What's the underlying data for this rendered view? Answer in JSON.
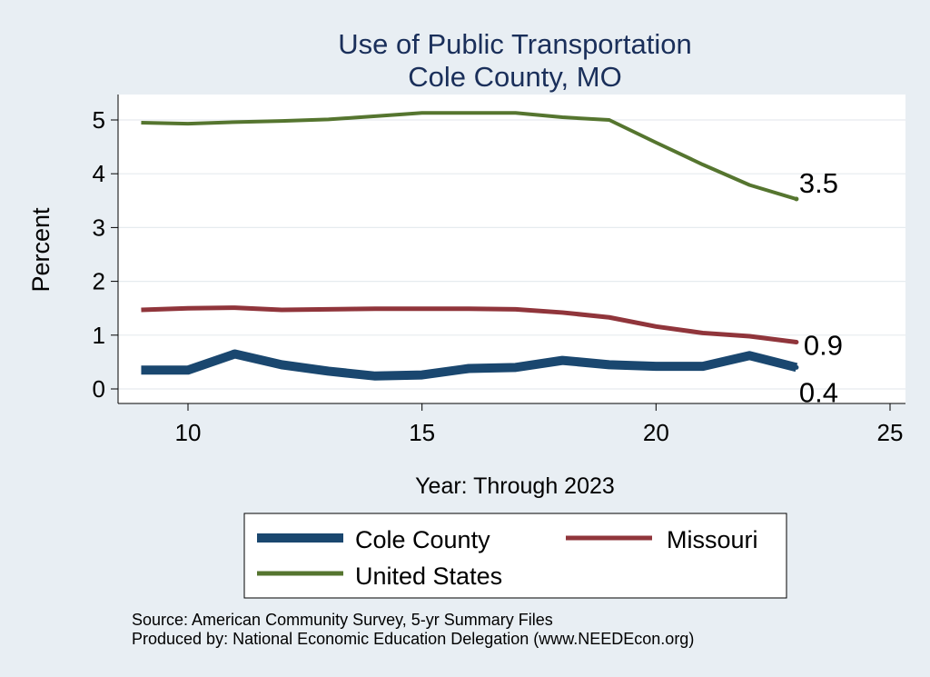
{
  "chart_data": {
    "type": "line",
    "title": [
      "Use of Public Transportation",
      "Cole County, MO"
    ],
    "xlabel": "Year: Through 2023",
    "ylabel": "Percent",
    "xlim": [
      9,
      25
    ],
    "ylim": [
      0,
      5.2
    ],
    "xticks": [
      10,
      15,
      20,
      25
    ],
    "yticks": [
      0,
      1,
      2,
      3,
      4,
      5
    ],
    "grid": true,
    "legend_position": "bottom",
    "x": [
      9,
      10,
      11,
      12,
      13,
      14,
      15,
      16,
      17,
      18,
      19,
      20,
      21,
      22,
      23
    ],
    "series": [
      {
        "name": "Cole County",
        "color": "#1a476f",
        "values": [
          0.35,
          0.35,
          0.65,
          0.45,
          0.33,
          0.24,
          0.26,
          0.38,
          0.4,
          0.53,
          0.45,
          0.42,
          0.42,
          0.62,
          0.4
        ],
        "end_label": "0.4"
      },
      {
        "name": "Missouri",
        "color": "#90353b",
        "values": [
          1.47,
          1.5,
          1.51,
          1.47,
          1.48,
          1.49,
          1.49,
          1.49,
          1.48,
          1.42,
          1.33,
          1.16,
          1.04,
          0.98,
          0.87
        ],
        "end_label": "0.9"
      },
      {
        "name": "United States",
        "color": "#55752f",
        "values": [
          4.95,
          4.93,
          4.96,
          4.98,
          5.01,
          5.07,
          5.13,
          5.13,
          5.13,
          5.05,
          5.0,
          4.58,
          4.17,
          3.79,
          3.53
        ],
        "end_label": "3.5"
      }
    ],
    "notes": [
      "Source: American Community Survey, 5-yr Summary Files",
      "Produced by: National Economic Education Delegation (www.NEEDEcon.org)"
    ]
  }
}
